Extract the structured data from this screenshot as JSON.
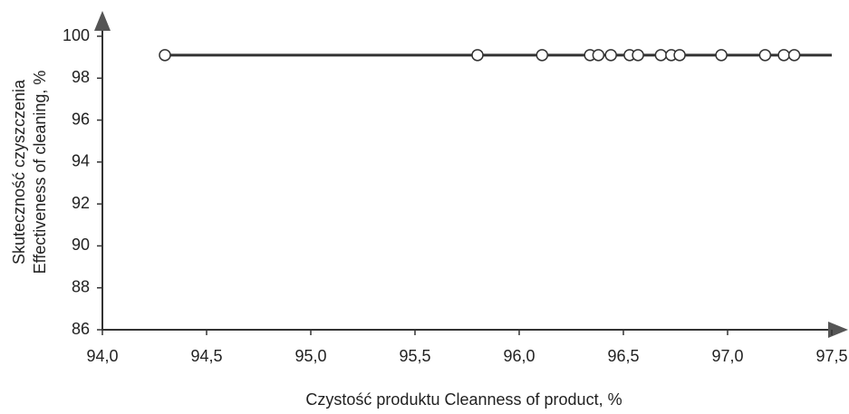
{
  "chart_data": {
    "type": "scatter",
    "x_label": "Czystość produktu Cleanness of product, %",
    "y_label": [
      "Skuteczność czyszczenia",
      "Effectiveness of cleaning, %"
    ],
    "xlim": [
      94.0,
      97.5
    ],
    "xticks": [
      {
        "value": 94.0,
        "label": "94,0"
      },
      {
        "value": 94.5,
        "label": "94,5"
      },
      {
        "value": 95.0,
        "label": "95,0"
      },
      {
        "value": 95.5,
        "label": "95,5"
      },
      {
        "value": 96.0,
        "label": "96,0"
      },
      {
        "value": 96.5,
        "label": "96,5"
      },
      {
        "value": 97.0,
        "label": "97,0"
      },
      {
        "value": 97.5,
        "label": "97,5"
      }
    ],
    "ylim": [
      86,
      100
    ],
    "yticks": [
      86,
      88,
      90,
      92,
      94,
      96,
      98,
      100
    ],
    "color": "#333333",
    "series": [
      {
        "x": [
          94.3,
          95.8,
          96.11,
          96.34,
          96.38,
          96.44,
          96.53,
          96.57,
          96.68,
          96.73,
          96.77,
          96.97,
          97.18,
          97.27,
          97.32
        ],
        "values": [
          99.1,
          99.1,
          99.1,
          99.1,
          99.1,
          99.1,
          99.1,
          99.1,
          99.1,
          99.1,
          99.1,
          99.1,
          99.1,
          99.1,
          99.1
        ]
      }
    ],
    "fit_line": {
      "x": [
        94.3,
        97.5
      ],
      "values": [
        99.1,
        99.1
      ]
    }
  }
}
